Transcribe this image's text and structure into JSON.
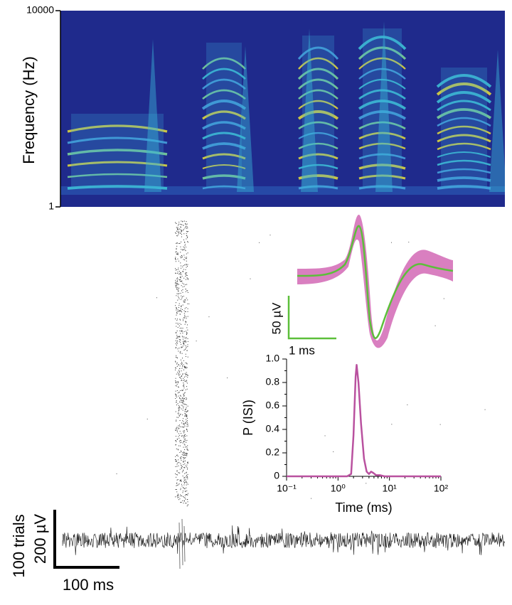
{
  "chart_data": [
    {
      "type": "heatmap",
      "ylabel": "Frequency (Hz)",
      "ylim": [
        1,
        10000
      ],
      "yticks": [
        1,
        10000
      ],
      "log_y": true
    },
    {
      "type": "raster",
      "scale_labels": [
        "100 trials",
        "200 µV",
        "100 ms"
      ]
    },
    {
      "type": "waveform",
      "fill_color": "#d97fc0",
      "line_color": "#5cbf3a",
      "scale_labels": [
        "50 µV",
        "1 ms"
      ]
    },
    {
      "type": "line",
      "ylabel": "P (ISI)",
      "xlabel": "Time (ms)",
      "log_x": true,
      "xlim": [
        0.1,
        100
      ],
      "xticks": [
        {
          "value": 0.1,
          "label": "10⁻¹"
        },
        {
          "value": 1,
          "label": "10⁰"
        },
        {
          "value": 10,
          "label": "10¹"
        },
        {
          "value": 100,
          "label": "10²"
        }
      ],
      "ylim": [
        0,
        1
      ],
      "yticks": [
        0,
        0.2,
        0.4,
        0.6,
        0.8,
        {
          "value": 1,
          "label": "1.0"
        }
      ],
      "x": [
        0.1,
        1.5,
        1.8,
        2.0,
        2.2,
        2.3,
        2.5,
        2.8,
        3.2,
        3.6,
        4.0,
        4.4,
        4.8,
        5.5,
        6.5,
        8,
        100
      ],
      "series": [
        {
          "color": "#b9519f",
          "values": [
            0,
            0,
            0.02,
            0.35,
            0.85,
            0.95,
            0.8,
            0.45,
            0.15,
            0.04,
            0.02,
            0.04,
            0.03,
            0.01,
            0.01,
            0,
            0
          ]
        }
      ]
    }
  ]
}
